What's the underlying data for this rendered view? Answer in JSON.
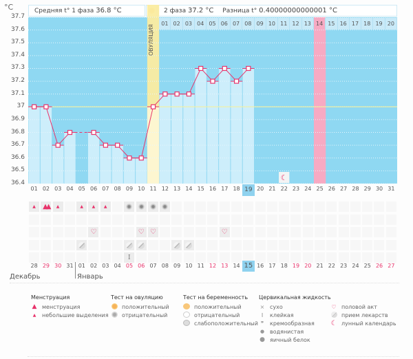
{
  "unit": "°C",
  "header": {
    "phase1_label": "Средняя t° 1 фаза",
    "phase1_value": "36.8 °C",
    "phase2_label": "2 фаза",
    "phase2_value": "37.2 °C",
    "diff_label": "Разница t°",
    "diff_value": "0.40000000000001 °C",
    "ovulation_label": "ОВУЛЯЦИЯ"
  },
  "colors": {
    "chart_bg": "#8fd8f2",
    "bar_fill": "#cdeefb",
    "line": "#e8336b",
    "ovulation": "#fbeca0",
    "menses_marker": "#f7aac3",
    "coverline": "#f3f0a0",
    "weekend": "#e8336b"
  },
  "chart_data": {
    "type": "line",
    "title": "",
    "xlabel": "",
    "ylabel": "°C",
    "ylim": [
      36.4,
      37.7
    ],
    "yticks": [
      "37.7",
      "37.6",
      "37.5",
      "37.4",
      "37.3",
      "37.2",
      "37.1",
      "37",
      "36.9",
      "36.8",
      "36.7",
      "36.6",
      "36.5",
      "36.4"
    ],
    "cycle_days": [
      "01",
      "02",
      "03",
      "04",
      "05",
      "06",
      "07",
      "08",
      "09",
      "10",
      "11",
      "12",
      "13",
      "14",
      "15",
      "16",
      "17",
      "18",
      "19",
      "20",
      "21",
      "22",
      "23",
      "24",
      "25",
      "26",
      "27",
      "28",
      "29",
      "30",
      "31"
    ],
    "temperatures": [
      37.0,
      37.0,
      36.7,
      36.8,
      null,
      36.8,
      36.7,
      36.7,
      36.6,
      36.6,
      37.0,
      37.1,
      37.1,
      37.1,
      37.3,
      37.2,
      37.3,
      37.2,
      37.3,
      null,
      null,
      null,
      null,
      null,
      null,
      null,
      null,
      null,
      null,
      null,
      null
    ],
    "coverline": 37.0,
    "ovulation_day": 11,
    "current_day": 19,
    "next_period_day": 25,
    "luteal_days": [
      "01",
      "02",
      "03",
      "04",
      "05",
      "06",
      "07",
      "08",
      "09",
      "10",
      "11",
      "12",
      "13",
      "14",
      "15",
      "16",
      "17",
      "18",
      "19",
      "20"
    ],
    "luteal_marker_day": "14",
    "moon_day": 22
  },
  "symbols": {
    "menstruation": [
      {
        "day": 1,
        "type": "small"
      },
      {
        "day": 2,
        "type": "menses"
      },
      {
        "day": 3,
        "type": "small"
      },
      {
        "day": 5,
        "type": "small"
      },
      {
        "day": 6,
        "type": "small"
      },
      {
        "day": 7,
        "type": "small"
      }
    ],
    "ovulation_test": [
      {
        "day": 9,
        "type": "negative"
      },
      {
        "day": 10,
        "type": "negative"
      },
      {
        "day": 11,
        "type": "negative"
      },
      {
        "day": 12,
        "type": "negative"
      }
    ],
    "intercourse": [
      6,
      10,
      11,
      17
    ],
    "medication": [
      5,
      9,
      10,
      13,
      14
    ],
    "cervical_fluid": [
      {
        "day": 9,
        "type": "sticky"
      }
    ]
  },
  "dates": {
    "labels": [
      "28",
      "29",
      "30",
      "31",
      "01",
      "02",
      "03",
      "04",
      "05",
      "06",
      "07",
      "08",
      "09",
      "10",
      "11",
      "12",
      "13",
      "14",
      "15",
      "16",
      "17",
      "18",
      "19",
      "20",
      "21",
      "22",
      "23",
      "24",
      "25",
      "26",
      "27"
    ],
    "weekend_idx": [
      1,
      2,
      8,
      9,
      15,
      16,
      22,
      23,
      29,
      30
    ],
    "today_idx": 18,
    "month1": "Декабрь",
    "month2": "Январь"
  },
  "legend": {
    "menstruation": {
      "title": "Менструация",
      "items": [
        "менструация",
        "небольшие выделения"
      ]
    },
    "ovulation_test": {
      "title": "Тест на овуляцию",
      "items": [
        "положительный",
        "отрицательный"
      ]
    },
    "pregnancy_test": {
      "title": "Тест на беременность",
      "items": [
        "положительный",
        "отрицательный",
        "слабоположительный"
      ]
    },
    "cervical": {
      "title": "Цервикальная жидкость",
      "items": [
        "сухо",
        "клейкая",
        "кремообразная",
        "водянистая",
        "яичный белок"
      ]
    },
    "other": {
      "items": [
        "половой акт",
        "прием лекарств",
        "лунный календарь"
      ]
    }
  }
}
